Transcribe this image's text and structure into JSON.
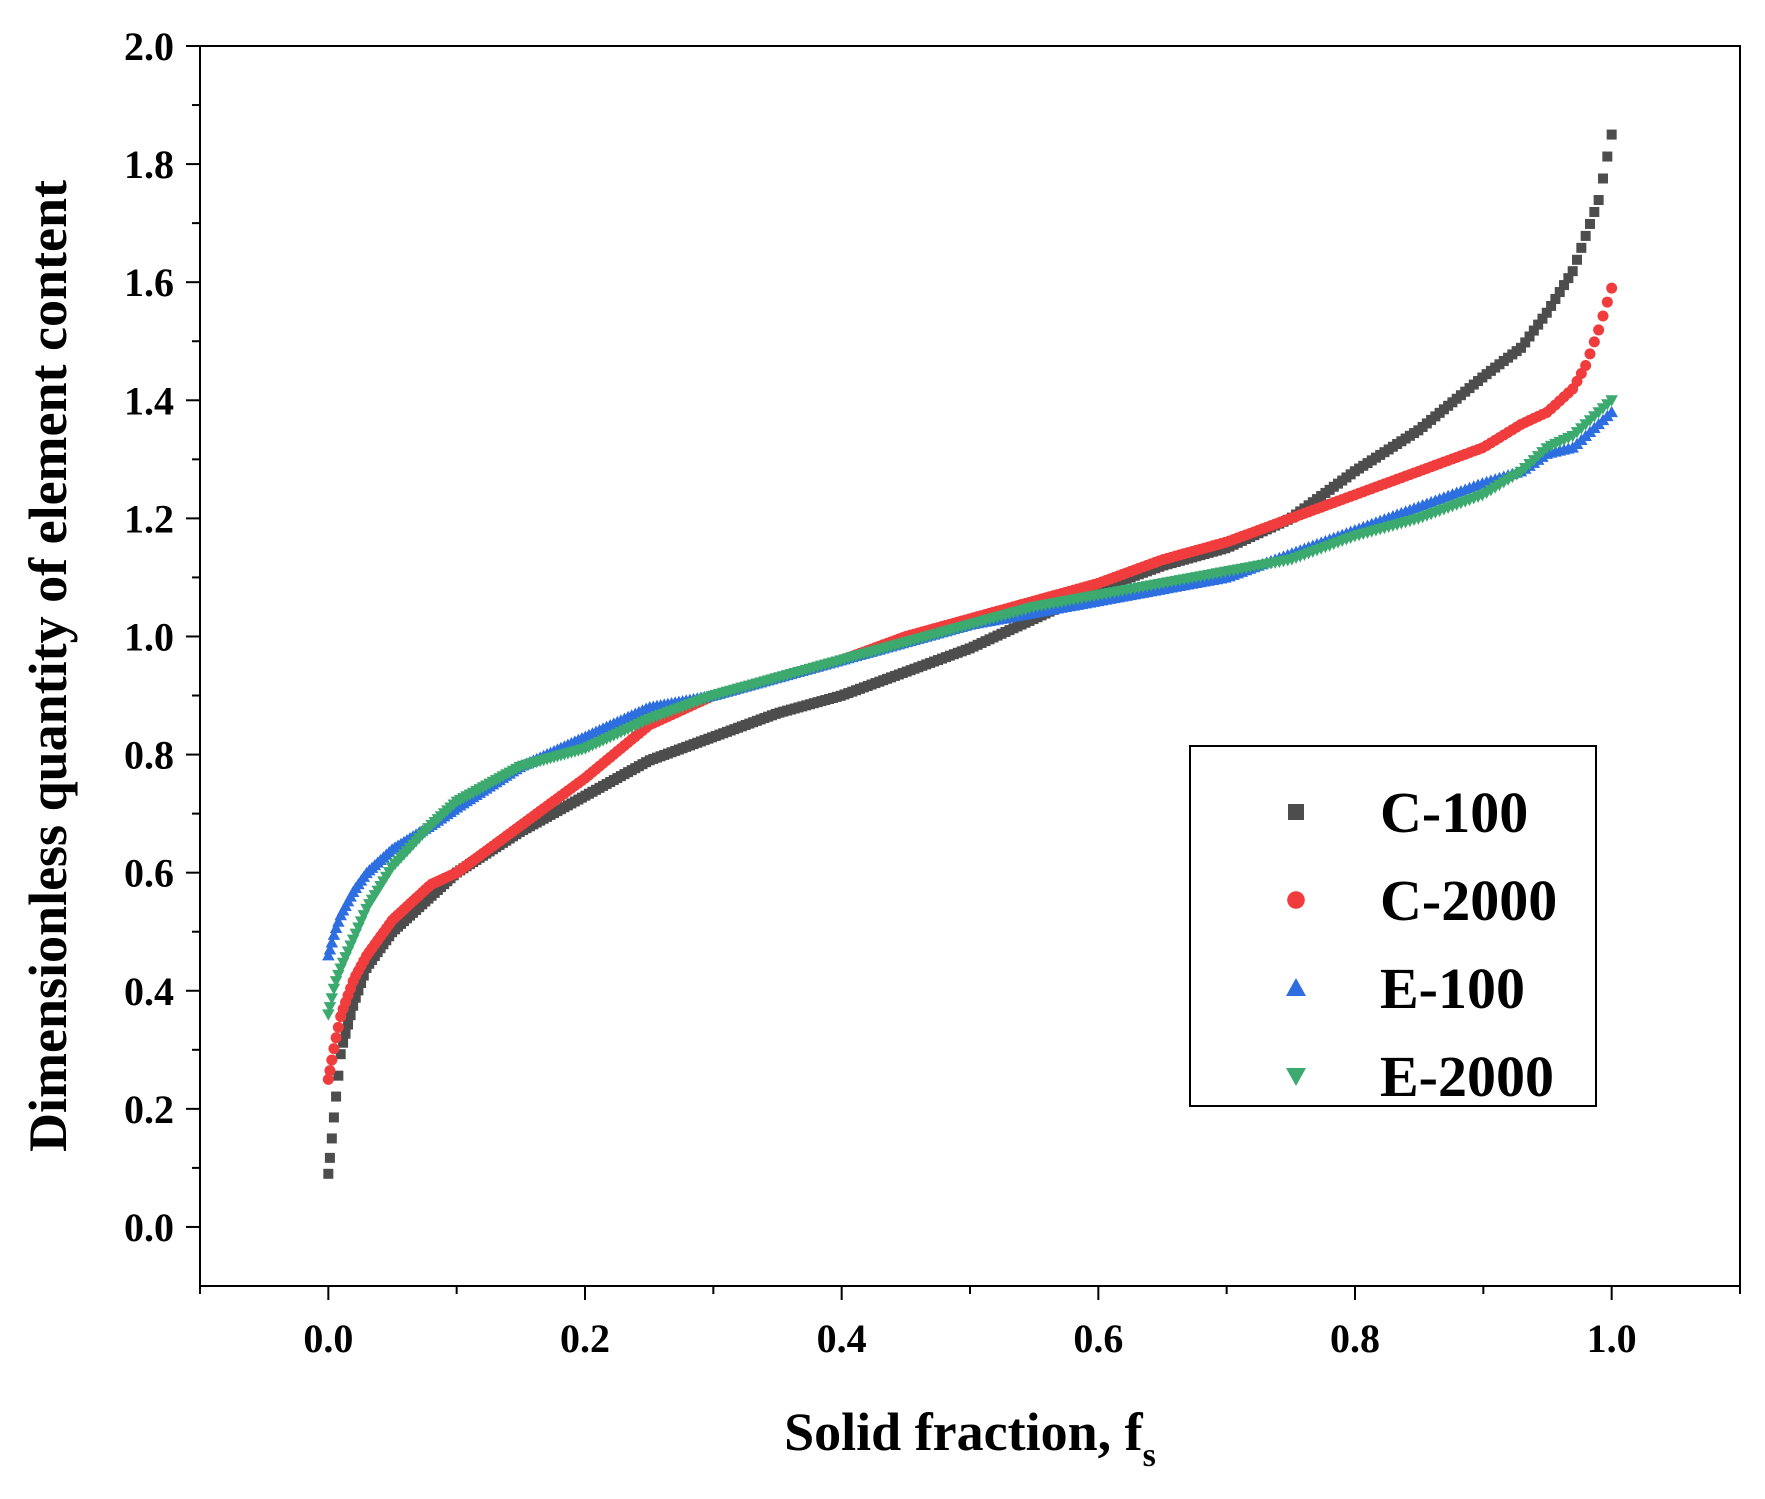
{
  "chart_data": {
    "type": "scatter",
    "title": "",
    "xlabel": "Solid fraction, f",
    "xlabel_subscript": "s",
    "ylabel": "Dimensionless quantity of element content",
    "xlim": [
      -0.1,
      1.1
    ],
    "ylim": [
      -0.1,
      2.0
    ],
    "x_ticks": [
      0.0,
      0.2,
      0.4,
      0.6,
      0.8,
      1.0
    ],
    "x_tick_labels": [
      "0.0",
      "0.2",
      "0.4",
      "0.6",
      "0.8",
      "1.0"
    ],
    "y_ticks": [
      0.0,
      0.2,
      0.4,
      0.6,
      0.8,
      1.0,
      1.2,
      1.4,
      1.6,
      1.8,
      2.0
    ],
    "y_tick_labels": [
      "0.0",
      "0.2",
      "0.4",
      "0.6",
      "0.8",
      "1.0",
      "1.2",
      "1.4",
      "1.6",
      "1.8",
      "2.0"
    ],
    "grid": false,
    "legend_position": "center-right",
    "series": [
      {
        "name": "C-100",
        "marker": "square",
        "color": "#4d4d4d",
        "x": [
          0.0,
          0.005,
          0.01,
          0.02,
          0.03,
          0.05,
          0.08,
          0.1,
          0.15,
          0.2,
          0.25,
          0.3,
          0.35,
          0.4,
          0.45,
          0.5,
          0.55,
          0.6,
          0.65,
          0.7,
          0.75,
          0.8,
          0.85,
          0.9,
          0.93,
          0.95,
          0.97,
          0.98,
          0.99,
          1.0
        ],
        "y": [
          0.09,
          0.2,
          0.3,
          0.38,
          0.44,
          0.5,
          0.56,
          0.6,
          0.67,
          0.73,
          0.79,
          0.83,
          0.87,
          0.9,
          0.94,
          0.98,
          1.03,
          1.08,
          1.12,
          1.15,
          1.2,
          1.28,
          1.35,
          1.44,
          1.49,
          1.55,
          1.62,
          1.68,
          1.74,
          1.85
        ]
      },
      {
        "name": "C-2000",
        "marker": "circle",
        "color": "#f03c3c",
        "x": [
          0.0,
          0.005,
          0.01,
          0.02,
          0.03,
          0.05,
          0.08,
          0.1,
          0.15,
          0.2,
          0.25,
          0.3,
          0.35,
          0.4,
          0.45,
          0.5,
          0.55,
          0.6,
          0.65,
          0.7,
          0.75,
          0.8,
          0.85,
          0.9,
          0.93,
          0.95,
          0.97,
          0.98,
          0.99,
          1.0
        ],
        "y": [
          0.25,
          0.31,
          0.36,
          0.42,
          0.46,
          0.52,
          0.58,
          0.6,
          0.68,
          0.76,
          0.85,
          0.9,
          0.93,
          0.96,
          1.0,
          1.03,
          1.06,
          1.09,
          1.13,
          1.16,
          1.2,
          1.24,
          1.28,
          1.32,
          1.36,
          1.38,
          1.42,
          1.46,
          1.52,
          1.59
        ]
      },
      {
        "name": "E-100",
        "marker": "triangle-up",
        "color": "#2d6ee0",
        "x": [
          0.0,
          0.005,
          0.01,
          0.02,
          0.03,
          0.05,
          0.08,
          0.1,
          0.15,
          0.2,
          0.25,
          0.3,
          0.35,
          0.4,
          0.45,
          0.5,
          0.55,
          0.6,
          0.65,
          0.7,
          0.75,
          0.8,
          0.85,
          0.9,
          0.93,
          0.95,
          0.97,
          0.98,
          0.99,
          1.0
        ],
        "y": [
          0.46,
          0.5,
          0.53,
          0.57,
          0.6,
          0.64,
          0.68,
          0.71,
          0.78,
          0.83,
          0.88,
          0.9,
          0.93,
          0.96,
          0.99,
          1.02,
          1.04,
          1.06,
          1.08,
          1.1,
          1.14,
          1.18,
          1.22,
          1.26,
          1.28,
          1.31,
          1.32,
          1.34,
          1.36,
          1.38
        ]
      },
      {
        "name": "E-2000",
        "marker": "triangle-down",
        "color": "#3caa6e",
        "x": [
          0.0,
          0.005,
          0.01,
          0.02,
          0.03,
          0.05,
          0.08,
          0.1,
          0.15,
          0.2,
          0.25,
          0.3,
          0.35,
          0.4,
          0.45,
          0.5,
          0.55,
          0.6,
          0.65,
          0.7,
          0.75,
          0.8,
          0.85,
          0.9,
          0.93,
          0.95,
          0.97,
          0.98,
          0.99,
          1.0
        ],
        "y": [
          0.36,
          0.41,
          0.44,
          0.49,
          0.54,
          0.61,
          0.68,
          0.72,
          0.78,
          0.81,
          0.86,
          0.9,
          0.93,
          0.96,
          0.99,
          1.02,
          1.05,
          1.07,
          1.09,
          1.11,
          1.13,
          1.17,
          1.2,
          1.24,
          1.28,
          1.32,
          1.34,
          1.36,
          1.38,
          1.4
        ]
      }
    ]
  }
}
